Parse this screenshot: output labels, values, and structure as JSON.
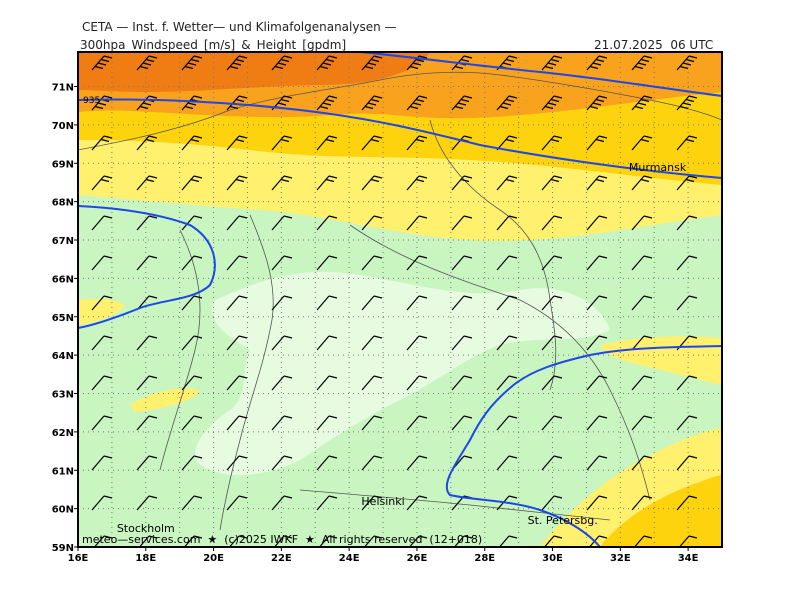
{
  "header": {
    "agency": "CETA — Inst. f. Wetter— und Klimafolgenanalysen —",
    "product": "300hpa_Windspeed_[m/s]_&_Height_[gpdm]",
    "datetime": "21.07.2025  06 UTC"
  },
  "map": {
    "lat_range": [
      59,
      71.9
    ],
    "lon_range": [
      16,
      35
    ],
    "lat_ticks": [
      "59N",
      "60N",
      "61N",
      "62N",
      "63N",
      "64N",
      "65N",
      "66N",
      "67N",
      "68N",
      "69N",
      "70N",
      "71N"
    ],
    "lon_ticks": [
      "16E",
      "18E",
      "20E",
      "22E",
      "24E",
      "26E",
      "28E",
      "30E",
      "32E",
      "34E"
    ],
    "contour_label": "935",
    "places": [
      {
        "name": "Murmansk",
        "lon": 33.1,
        "lat": 68.9
      },
      {
        "name": "Helsinki",
        "lon": 25.0,
        "lat": 60.2
      },
      {
        "name": "Stockholm",
        "lon": 18.0,
        "lat": 59.5
      },
      {
        "name": "St. Petersbg.",
        "lon": 30.3,
        "lat": 59.7
      }
    ],
    "colors": {
      "orange_dark": "#f07d14",
      "orange": "#f9a21e",
      "gold": "#fdd30e",
      "yellow": "#fff06e",
      "green": "#c8f5c0",
      "green_light": "#e6fbe0",
      "contour": "#1f46e6"
    }
  },
  "footer": {
    "credit": "meteo—services.com  ★  (c)2025 IWKF  ★  All rights reserved  (12+018)"
  }
}
